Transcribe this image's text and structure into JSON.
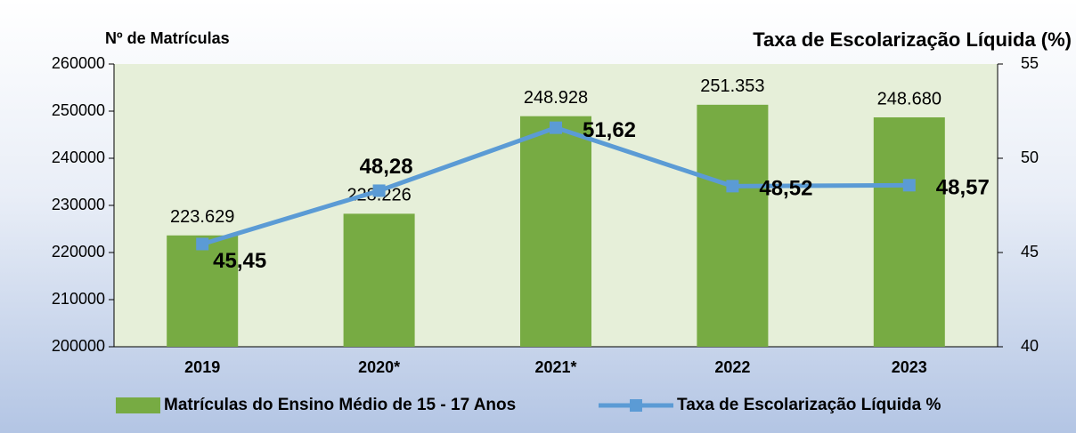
{
  "chart_data": {
    "type": "bar",
    "y_label": "Nº de Matrículas",
    "y2_label": "Taxa de Escolarização Líquida (%)",
    "categories": [
      "2019",
      "2020*",
      "2021*",
      "2022",
      "2023"
    ],
    "series": [
      {
        "name": "Matrículas do Ensino Médio de 15 - 17 Anos",
        "type": "bar",
        "color": "#77ab43",
        "values": [
          223629,
          228226,
          248928,
          251353,
          248680
        ],
        "value_labels": [
          "223.629",
          "228.226",
          "248.928",
          "251.353",
          "248.680"
        ]
      },
      {
        "name": "Taxa de Escolarização Líquida %",
        "type": "line",
        "axis": "y2",
        "color": "#5b9bd5",
        "values": [
          45.45,
          48.28,
          51.62,
          48.52,
          48.57
        ],
        "value_labels": [
          "45,45",
          "48,28",
          "51,62",
          "48,52",
          "48,57"
        ]
      }
    ],
    "ylim": [
      200000,
      260000
    ],
    "yticks": [
      200000,
      210000,
      220000,
      230000,
      240000,
      250000,
      260000
    ],
    "y2lim": [
      40,
      55
    ],
    "y2ticks": [
      40,
      45,
      50,
      55
    ]
  }
}
